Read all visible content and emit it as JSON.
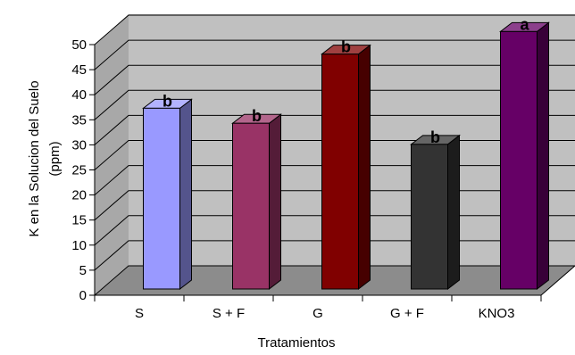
{
  "chart_data": {
    "type": "bar",
    "title": "",
    "xlabel": "Tratamientos",
    "ylabel_lines": [
      "K en la Solucion del Suelo",
      "(ppm)"
    ],
    "categories": [
      "S",
      "S + F",
      "G",
      "G + F",
      "KNO3"
    ],
    "values": [
      32.5,
      29.5,
      43.3,
      25.3,
      47.8
    ],
    "significance_labels": [
      "b",
      "b",
      "b",
      "b",
      "a"
    ],
    "bar_colors": [
      "#9999FF",
      "#993366",
      "#800000",
      "#333333",
      "#660066"
    ],
    "ylim": [
      0,
      50
    ],
    "yticks": [
      "0",
      "5",
      "10",
      "15",
      "20",
      "25",
      "30",
      "35",
      "40",
      "45",
      "50"
    ],
    "grid": true,
    "style": "3d",
    "legend": "none"
  }
}
